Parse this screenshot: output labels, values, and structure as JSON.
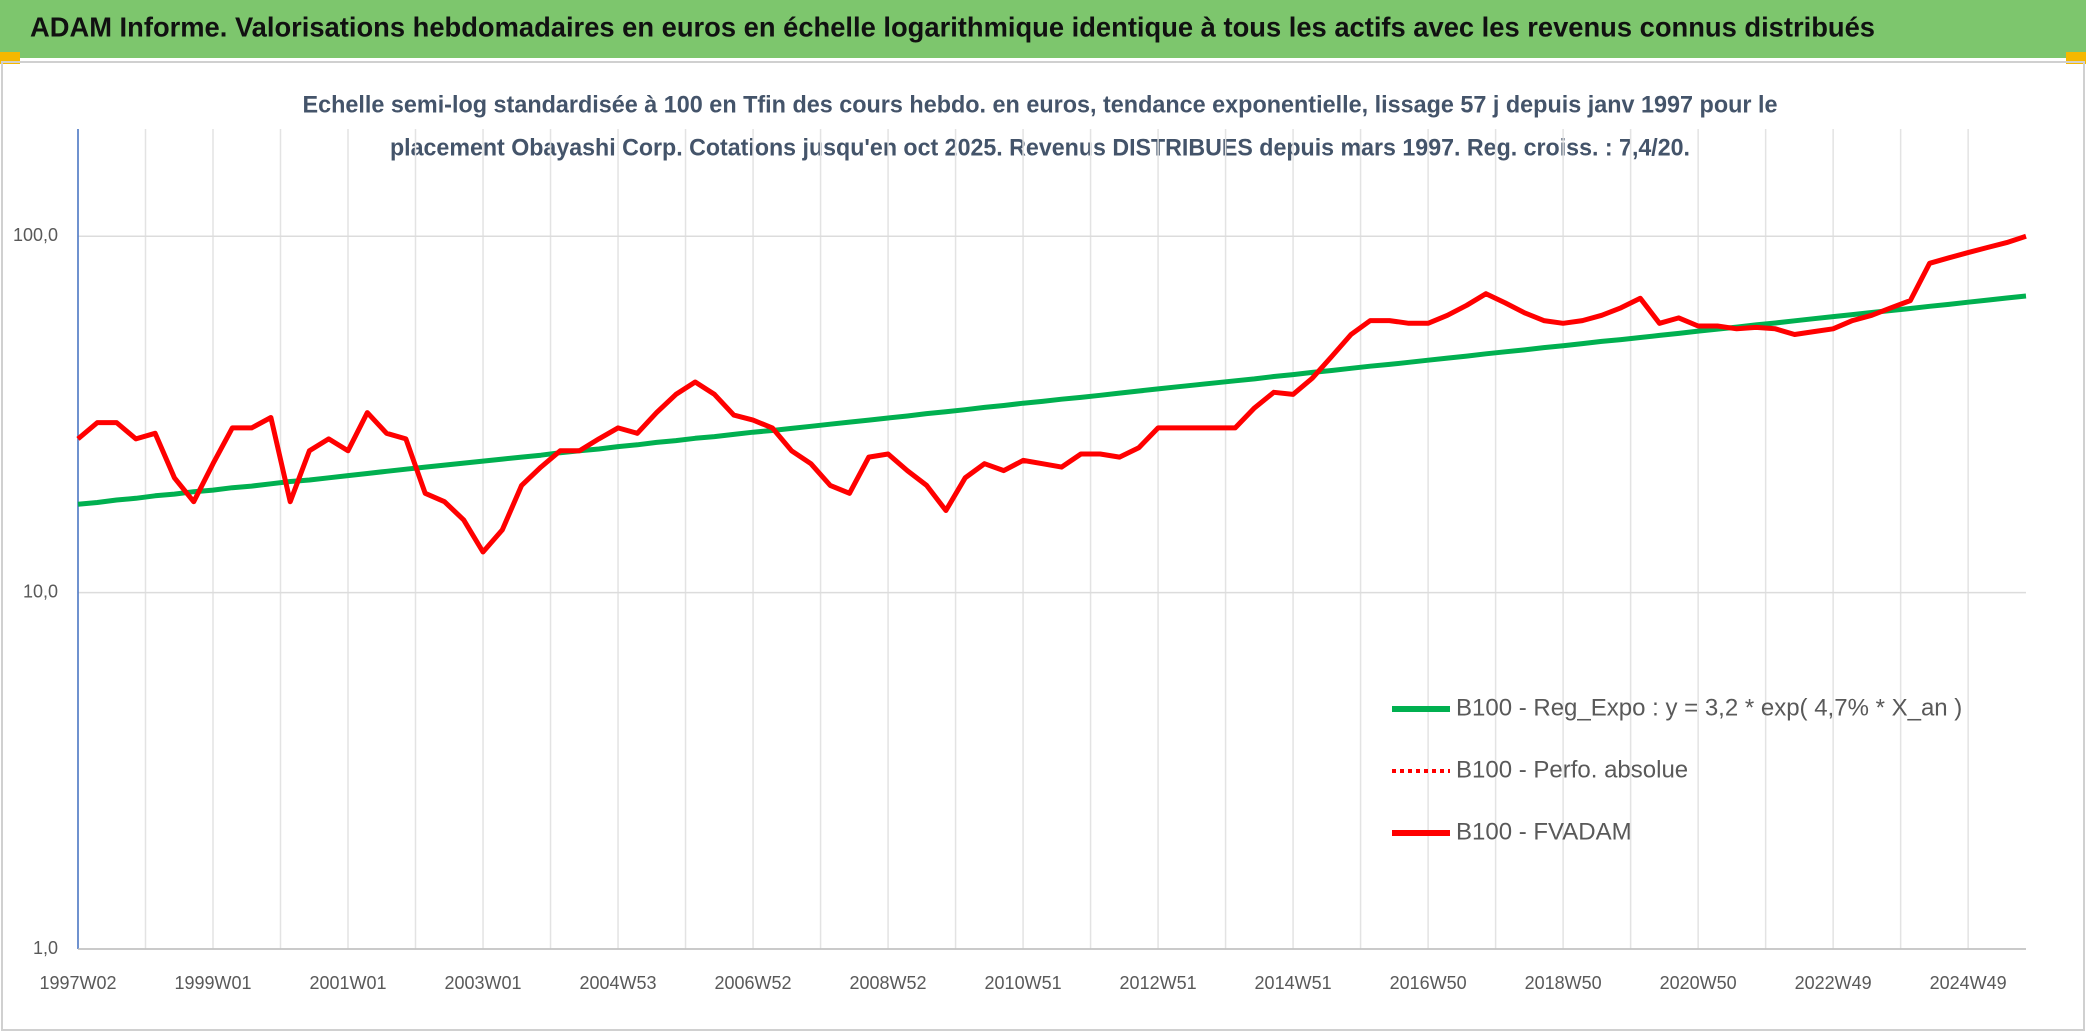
{
  "chart_data": {
    "type": "line",
    "title": "ADAM Informe. Valorisations hebdomadaires en euros en échelle logarithmique identique à tous les actifs avec les revenus connus distribués",
    "subtitle": [
      "Echelle semi-log standardisée à 100 en Tfin des cours hebdo. en euros, tendance exponentielle, lissage 57 j depuis janv 1997 pour le",
      "placement Obayashi Corp. Cotations jusqu'en oct 2025. Revenus DISTRIBUES depuis mars 1997. Reg. croiss. : 7,4/20."
    ],
    "log_scale": true,
    "grid": true,
    "legend": "right",
    "ylim": [
      1,
      200
    ],
    "yticks": [
      {
        "value": 1,
        "label": "1,0"
      },
      {
        "value": 10,
        "label": "10,0"
      },
      {
        "value": 100,
        "label": "100,0"
      }
    ],
    "categories": [
      "1997W02",
      null,
      null,
      null,
      null,
      null,
      null,
      "1999W01",
      null,
      null,
      null,
      null,
      null,
      null,
      "2001W01",
      null,
      null,
      null,
      null,
      null,
      null,
      "2003W01",
      null,
      null,
      null,
      null,
      null,
      null,
      "2004W53",
      null,
      null,
      null,
      null,
      null,
      null,
      "2006W52",
      null,
      null,
      null,
      null,
      null,
      null,
      "2008W52",
      null,
      null,
      null,
      null,
      null,
      null,
      "2010W51",
      null,
      null,
      null,
      null,
      null,
      null,
      "2012W51",
      null,
      null,
      null,
      null,
      null,
      null,
      "2014W51",
      null,
      null,
      null,
      null,
      null,
      null,
      "2016W50",
      null,
      null,
      null,
      null,
      null,
      null,
      "2018W50",
      null,
      null,
      null,
      null,
      null,
      null,
      "2020W50",
      null,
      null,
      null,
      null,
      null,
      null,
      "2022W49",
      null,
      null,
      null,
      null,
      null,
      null,
      "2024W49",
      null,
      null,
      null
    ],
    "series": [
      {
        "name": "B100 - Reg_Expo : y = 3,2 * exp( 4,7% *  X_an )",
        "color": "#00b050",
        "dash": false,
        "values": [
          17.7,
          17.9,
          18.2,
          18.4,
          18.7,
          18.9,
          19.2,
          19.4,
          19.7,
          19.9,
          20.2,
          20.5,
          20.7,
          21.0,
          21.3,
          21.6,
          21.9,
          22.2,
          22.5,
          22.8,
          23.1,
          23.4,
          23.7,
          24.0,
          24.3,
          24.7,
          25.0,
          25.3,
          25.7,
          26.0,
          26.4,
          26.7,
          27.1,
          27.4,
          27.8,
          28.2,
          28.5,
          28.9,
          29.3,
          29.7,
          30.1,
          30.5,
          30.9,
          31.3,
          31.8,
          32.2,
          32.6,
          33.1,
          33.5,
          34.0,
          34.4,
          34.9,
          35.3,
          35.8,
          36.3,
          36.8,
          37.3,
          37.8,
          38.3,
          38.8,
          39.3,
          39.8,
          40.4,
          40.9,
          41.5,
          42.0,
          42.6,
          43.2,
          43.7,
          44.3,
          44.9,
          45.5,
          46.1,
          46.8,
          47.4,
          48.0,
          48.7,
          49.3,
          50.0,
          50.7,
          51.3,
          52.0,
          52.7,
          53.4,
          54.2,
          54.9,
          55.6,
          56.4,
          57.1,
          57.9,
          58.7,
          59.5,
          60.3,
          61.1,
          61.9,
          62.7,
          63.6,
          64.4,
          65.3,
          66.2,
          67.1,
          68.0
        ]
      },
      {
        "name": "B100 - Perfo. absolue",
        "color": "#ff0000",
        "dash": true,
        "values": [
          27,
          30,
          30,
          27,
          28,
          21,
          18,
          23,
          29,
          29,
          31,
          18,
          25,
          27,
          25,
          32,
          28,
          27,
          19,
          18,
          16,
          13,
          15,
          20,
          22.5,
          25,
          25,
          27,
          29,
          28,
          32,
          36,
          39,
          36,
          31.5,
          30.5,
          29,
          25,
          23,
          20,
          19,
          24,
          24.5,
          22,
          20,
          17,
          21,
          23,
          22,
          23.5,
          23,
          22.5,
          24.5,
          24.5,
          24,
          25.5,
          29,
          29,
          29,
          29,
          29,
          33,
          36.5,
          36,
          40,
          46,
          53,
          58,
          58,
          57,
          57,
          60,
          64,
          69,
          65,
          61,
          58,
          57,
          58,
          60,
          63,
          67,
          57,
          59,
          56,
          56,
          55,
          55.5,
          55,
          53,
          54,
          55,
          58,
          60,
          63,
          66,
          84,
          87,
          90,
          93,
          96,
          100
        ]
      },
      {
        "name": "B100 - FVADAM",
        "color": "#ff0000",
        "dash": false,
        "values": [
          27,
          30,
          30,
          27,
          28,
          21,
          18,
          23,
          29,
          29,
          31,
          18,
          25,
          27,
          25,
          32,
          28,
          27,
          19,
          18,
          16,
          13,
          15,
          20,
          22.5,
          25,
          25,
          27,
          29,
          28,
          32,
          36,
          39,
          36,
          31.5,
          30.5,
          29,
          25,
          23,
          20,
          19,
          24,
          24.5,
          22,
          20,
          17,
          21,
          23,
          22,
          23.5,
          23,
          22.5,
          24.5,
          24.5,
          24,
          25.5,
          29,
          29,
          29,
          29,
          29,
          33,
          36.5,
          36,
          40,
          46,
          53,
          58,
          58,
          57,
          57,
          60,
          64,
          69,
          65,
          61,
          58,
          57,
          58,
          60,
          63,
          67,
          57,
          59,
          56,
          56,
          55,
          55.5,
          55,
          53,
          54,
          55,
          58,
          60,
          63,
          66,
          84,
          87,
          90,
          93,
          96,
          100
        ]
      }
    ]
  }
}
